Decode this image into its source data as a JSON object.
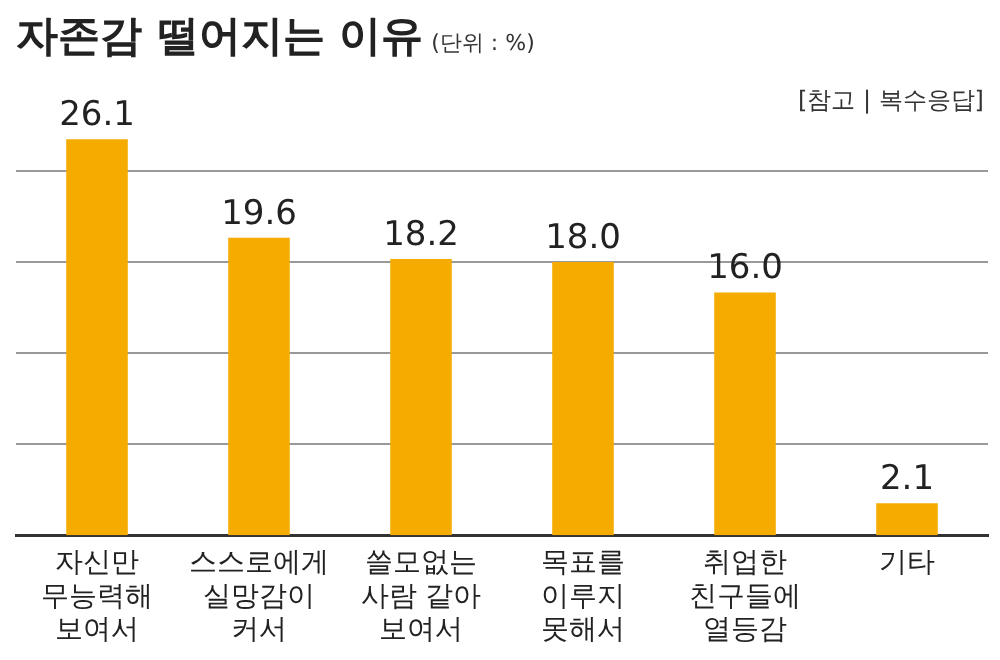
{
  "chart_data": {
    "type": "bar",
    "title": "자존감 떨어지는 이유",
    "subtitle": "(단위 : %)",
    "annotations": [
      "[참고 | 복수응답]"
    ],
    "categories": [
      "자신만\n무능력해\n보여서",
      "스스로에게\n실망감이\n커서",
      "쓸모없는\n사람 같아\n보여서",
      "목표를\n이루지\n못해서",
      "취업한\n친구들에\n열등감",
      "기타"
    ],
    "values": [
      26.1,
      19.6,
      18.2,
      18.0,
      16.0,
      2.1
    ],
    "color": "#f5ab00",
    "value_labels": [
      "26.1",
      "19.6",
      "18.2",
      "18.0",
      "16.0",
      "2.1"
    ],
    "yticks": [
      {
        "value": 6,
        "label": null
      },
      {
        "value": 12,
        "label": null
      },
      {
        "value": 18,
        "label": null
      },
      {
        "value": 24,
        "label": null
      }
    ],
    "tick_labels": "x",
    "grid": "y",
    "legend": false
  }
}
